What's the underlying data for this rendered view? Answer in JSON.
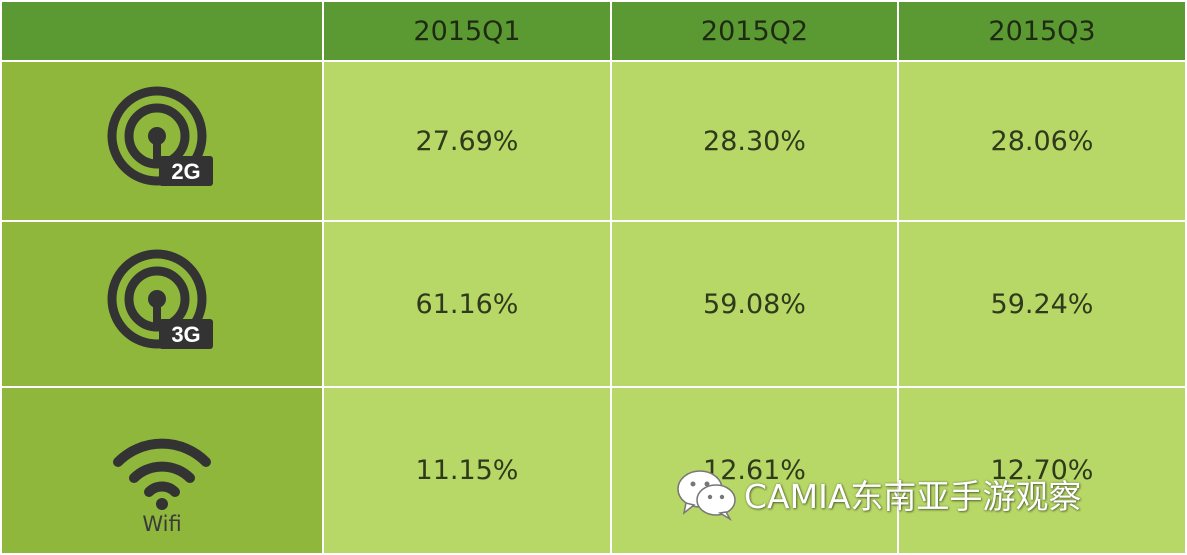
{
  "chart_data": {
    "type": "table",
    "columns": [
      "2015Q1",
      "2015Q2",
      "2015Q3"
    ],
    "rows": [
      {
        "icon": "2g-signal-icon",
        "badge": "2G",
        "values": [
          "27.69%",
          "28.30%",
          "28.06%"
        ]
      },
      {
        "icon": "3g-signal-icon",
        "badge": "3G",
        "values": [
          "61.16%",
          "59.08%",
          "59.24%"
        ]
      },
      {
        "icon": "wifi-icon",
        "label": "Wifi",
        "values": [
          "11.15%",
          "12.61%",
          "12.70%"
        ]
      }
    ]
  },
  "watermark": {
    "icon": "wechat-icon",
    "text": "CAMIA东南亚手游观察"
  },
  "colors": {
    "header": "#5b9a32",
    "icon_column": "#8fb73c",
    "value_cells": "#b7d766",
    "icon": "#333333"
  }
}
